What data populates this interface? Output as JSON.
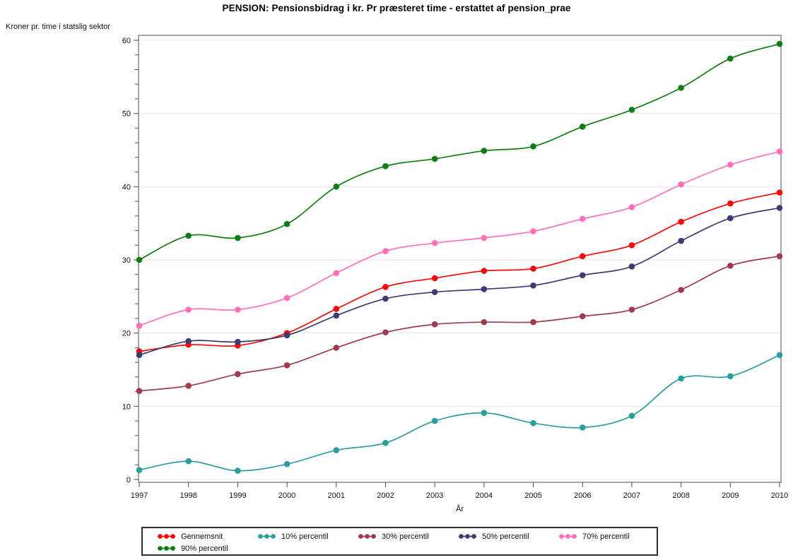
{
  "chart_data": {
    "type": "line",
    "title": "PENSION: Pensionsbidrag i kr. Pr præsteret time - erstattet af pension_prae",
    "ylabel": "Kroner pr. time i statslig sektor",
    "xlabel": "År",
    "x": [
      1997,
      1998,
      1999,
      2000,
      2001,
      2002,
      2003,
      2004,
      2005,
      2006,
      2007,
      2008,
      2009,
      2010
    ],
    "ylim": [
      0,
      60
    ],
    "yticks": [
      0,
      10,
      20,
      30,
      40,
      50,
      60
    ],
    "y_minor_tick_step": 2,
    "grid": "horizontal-major",
    "legend_position": "bottom-left-box",
    "marker": "filled-circle",
    "interpolation": "smooth-spline",
    "series": [
      {
        "name": "Gennemsnit",
        "color": "#F80808",
        "values": [
          17.5,
          18.4,
          18.3,
          20.0,
          23.3,
          26.3,
          27.5,
          28.5,
          28.8,
          30.5,
          32.0,
          35.2,
          37.7,
          39.2
        ]
      },
      {
        "name": "10% percentil",
        "color": "#2A9D9D",
        "values": [
          1.3,
          2.5,
          1.2,
          2.1,
          4.0,
          5.0,
          8.0,
          9.1,
          7.7,
          7.1,
          8.7,
          13.8,
          14.1,
          17.0
        ]
      },
      {
        "name": "30% percentil",
        "color": "#A03A50",
        "values": [
          12.1,
          12.8,
          14.4,
          15.6,
          18.0,
          20.1,
          21.2,
          21.5,
          21.5,
          22.3,
          23.2,
          25.9,
          29.2,
          30.5
        ]
      },
      {
        "name": "50% percentil",
        "color": "#3C3C70",
        "values": [
          17.0,
          18.9,
          18.8,
          19.7,
          22.4,
          24.7,
          25.6,
          26.0,
          26.5,
          27.9,
          29.1,
          32.6,
          35.7,
          37.1
        ]
      },
      {
        "name": "70% percentil",
        "color": "#FF70B8",
        "values": [
          21.0,
          23.2,
          23.2,
          24.8,
          28.2,
          31.2,
          32.3,
          33.0,
          33.9,
          35.6,
          37.2,
          40.3,
          43.0,
          44.8
        ]
      },
      {
        "name": "90% percentil",
        "color": "#0E7D12",
        "values": [
          30.0,
          33.3,
          33.0,
          34.9,
          40.0,
          42.8,
          43.8,
          44.9,
          45.5,
          48.2,
          50.5,
          53.5,
          57.5,
          59.5
        ]
      }
    ]
  },
  "colors": {
    "background": "#FFFFFF",
    "gridline": "#E4E4E4",
    "frame": "#8A8A8A",
    "tick": "#4D4D4D",
    "text": "#111111",
    "legend_border": "#2E2E2E"
  }
}
